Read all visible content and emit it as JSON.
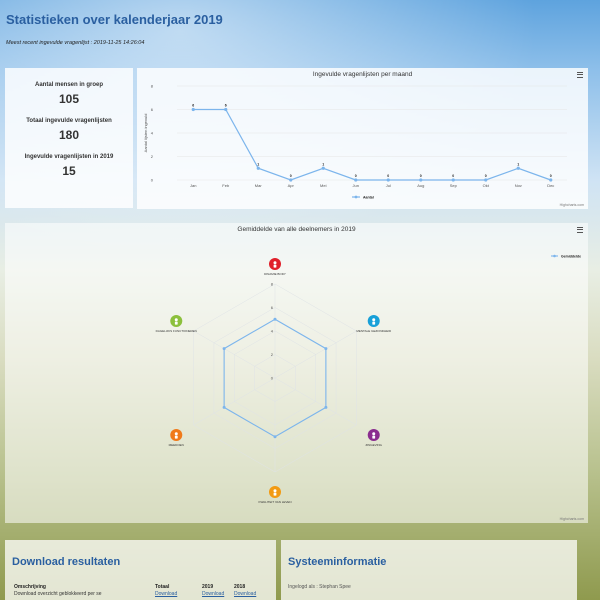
{
  "page": {
    "title": "Statistieken over kalenderjaar 2019",
    "subtitle": "Meest recent ingevulde vragenlijst : 2019-11-25 14:26:04"
  },
  "stats": [
    {
      "label": "Aantal mensen in groep",
      "value": "105"
    },
    {
      "label": "Totaal ingevulde vragenlijsten",
      "value": "180"
    },
    {
      "label": "Ingevulde vragenlijsten in 2019",
      "value": "15"
    }
  ],
  "line_chart": {
    "title": "Ingevulde vragenlijsten per maand",
    "credit": "Highcharts.com",
    "legend": "Aantal"
  },
  "radar_chart": {
    "title": "Gemiddelde van alle deelnemers in 2019",
    "credit": "Highcharts.com",
    "legend": "Gemiddelde"
  },
  "chart_data": [
    {
      "type": "line",
      "title": "Ingevulde vragenlijsten per maand",
      "categories": [
        "Jan",
        "Feb",
        "Mar",
        "Apr",
        "Mei",
        "Jun",
        "Jul",
        "Aug",
        "Sep",
        "Okt",
        "Nov",
        "Dec"
      ],
      "series": [
        {
          "name": "Aantal",
          "values": [
            6,
            6,
            1,
            0,
            1,
            0,
            0,
            0,
            0,
            0,
            1,
            0
          ]
        }
      ],
      "ylabel": "Aantal lijsten ingevuld",
      "yticks": [
        "0",
        "2",
        "4",
        "6",
        "8"
      ],
      "ylim": [
        0,
        8
      ],
      "color": "#7cb5ec",
      "grid": true,
      "legend_position": "bottom"
    },
    {
      "type": "radar",
      "title": "Gemiddelde van alle deelnemers in 2019",
      "categories": [
        "DINAMIE BODY",
        "MENTALE GEZONDHEID",
        "ZINGEVING",
        "KWALITEIT VAN LEVEN",
        "MEEDOEN",
        "DAGELIJKS FUNCTIONEREN"
      ],
      "series": [
        {
          "name": "Gemiddelde",
          "values": [
            5.0,
            5.0,
            5.0,
            5.0,
            5.0,
            5.0
          ]
        }
      ],
      "rticks": [
        "0",
        "2",
        "4",
        "6",
        "8"
      ],
      "rlim": [
        0,
        8
      ],
      "color": "#7cb5ec",
      "legend_position": "top-right"
    }
  ],
  "radar_icons": [
    {
      "color": "#e0202b"
    },
    {
      "color": "#18a0d8"
    },
    {
      "color": "#8a2d8f"
    },
    {
      "color": "#f29a12"
    },
    {
      "color": "#f07a1a"
    },
    {
      "color": "#8cc03c"
    }
  ],
  "download": {
    "title": "Download resultaten",
    "col_description": "Omschrijving",
    "col_total": "Totaal",
    "col_2019": "2019",
    "col_2018": "2018",
    "row_text": "Download overzicht geblokkeerd per se",
    "link_label": "Download"
  },
  "system": {
    "title": "Systeeminformatie",
    "logged_in": "Ingelogd als : Stephan Spee"
  }
}
